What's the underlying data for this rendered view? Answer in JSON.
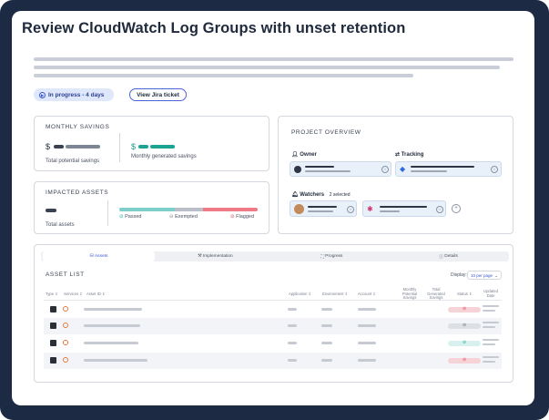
{
  "page": {
    "title": "Review CloudWatch Log Groups with unset retention",
    "status": "In progress - 4 days",
    "jira": "View Jira ticket"
  },
  "monthly": {
    "heading": "MONTHLY SAVINGS",
    "currency": "$",
    "potential_label": "Total potential savings",
    "generated_label": "Monthly generated savings"
  },
  "impacted": {
    "heading": "IMPACTED ASSETS",
    "total_label": "Total assets",
    "passed": "Passed",
    "exempted": "Exempted",
    "flagged": "Flagged",
    "colors": {
      "passed": "#7fcfc9",
      "exempted": "#b9bec8",
      "flagged": "#ef7a86"
    }
  },
  "project": {
    "heading": "PROJECT OVERVIEW",
    "owner": "Owner",
    "tracking": "Tracking",
    "watchers": "Watchers",
    "watchers_count": "2 selected"
  },
  "tabs": [
    "Assets",
    "Implementation",
    "Progress",
    "Details"
  ],
  "assets": {
    "heading": "ASSET LIST",
    "display_label": "Display:",
    "display_value": "10 per page",
    "columns": [
      "Type",
      "Services",
      "Asset ID",
      "Application",
      "Environment",
      "Account",
      "Monthly Potential Savings",
      "Total Generated Savings",
      "Status",
      "Updated Date"
    ],
    "rows": [
      {
        "status": "flagged",
        "color": "#f6d3d6"
      },
      {
        "status": "exempted",
        "color": "#dcdfe4"
      },
      {
        "status": "passed",
        "color": "#d8f1ee"
      },
      {
        "status": "flagged",
        "color": "#f6d3d6"
      }
    ]
  }
}
